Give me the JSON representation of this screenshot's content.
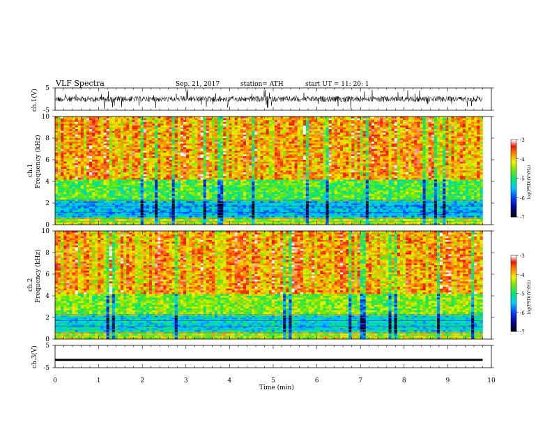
{
  "header": {
    "title": "VLF Spectra",
    "date": "Sep. 21, 2017",
    "station": "station= ATH",
    "start": "start  UT  =    11: 20: 1"
  },
  "chart_data": [
    {
      "type": "line",
      "panel": "ch1-waveform",
      "ylabel": "ch.1(V)",
      "y_ticks": [
        "5",
        "-5"
      ],
      "ylim": [
        -5,
        5
      ],
      "xlim": [
        0,
        10
      ],
      "description_values": "noisy waveform around 0 V with amplitude roughly ±1 V, spikes up to ±3 V"
    },
    {
      "type": "heatmap",
      "panel": "ch1-spectrogram",
      "ylabel_channel": "ch.1",
      "ylabel": "Frequency  (kHz)",
      "y_ticks": [
        "0",
        "2",
        "4",
        "6",
        "8",
        "10"
      ],
      "ylim": [
        0,
        10
      ],
      "xlim": [
        0,
        9.8
      ],
      "colorbar": {
        "label": "log(PSD)(V²/Hz)",
        "ticks": [
          "-3",
          "-4",
          "-5",
          "-6",
          "-7"
        ],
        "range": [
          -7,
          -3
        ]
      }
    },
    {
      "type": "heatmap",
      "panel": "ch2-spectrogram",
      "ylabel_channel": "ch.2",
      "ylabel": "Frequency  (kHz)",
      "y_ticks": [
        "0",
        "2",
        "4",
        "6",
        "8",
        "10"
      ],
      "ylim": [
        0,
        10
      ],
      "xlim": [
        0,
        9.8
      ],
      "colorbar": {
        "label": "log(PSD)(V²/Hz)",
        "ticks": [
          "-3",
          "-4",
          "-5",
          "-6",
          "-7"
        ],
        "range": [
          -7,
          -3
        ]
      }
    },
    {
      "type": "line",
      "panel": "ch3-waveform",
      "ylabel": "ch.3(V)",
      "y_ticks": [
        "5",
        "-5"
      ],
      "ylim": [
        -5,
        5
      ],
      "xlim": [
        0,
        10
      ],
      "level": -1.5
    }
  ],
  "x_axis": {
    "label": "Time  (min)",
    "ticks": [
      "0",
      "1",
      "2",
      "3",
      "4",
      "5",
      "6",
      "7",
      "8",
      "9",
      "10"
    ]
  }
}
